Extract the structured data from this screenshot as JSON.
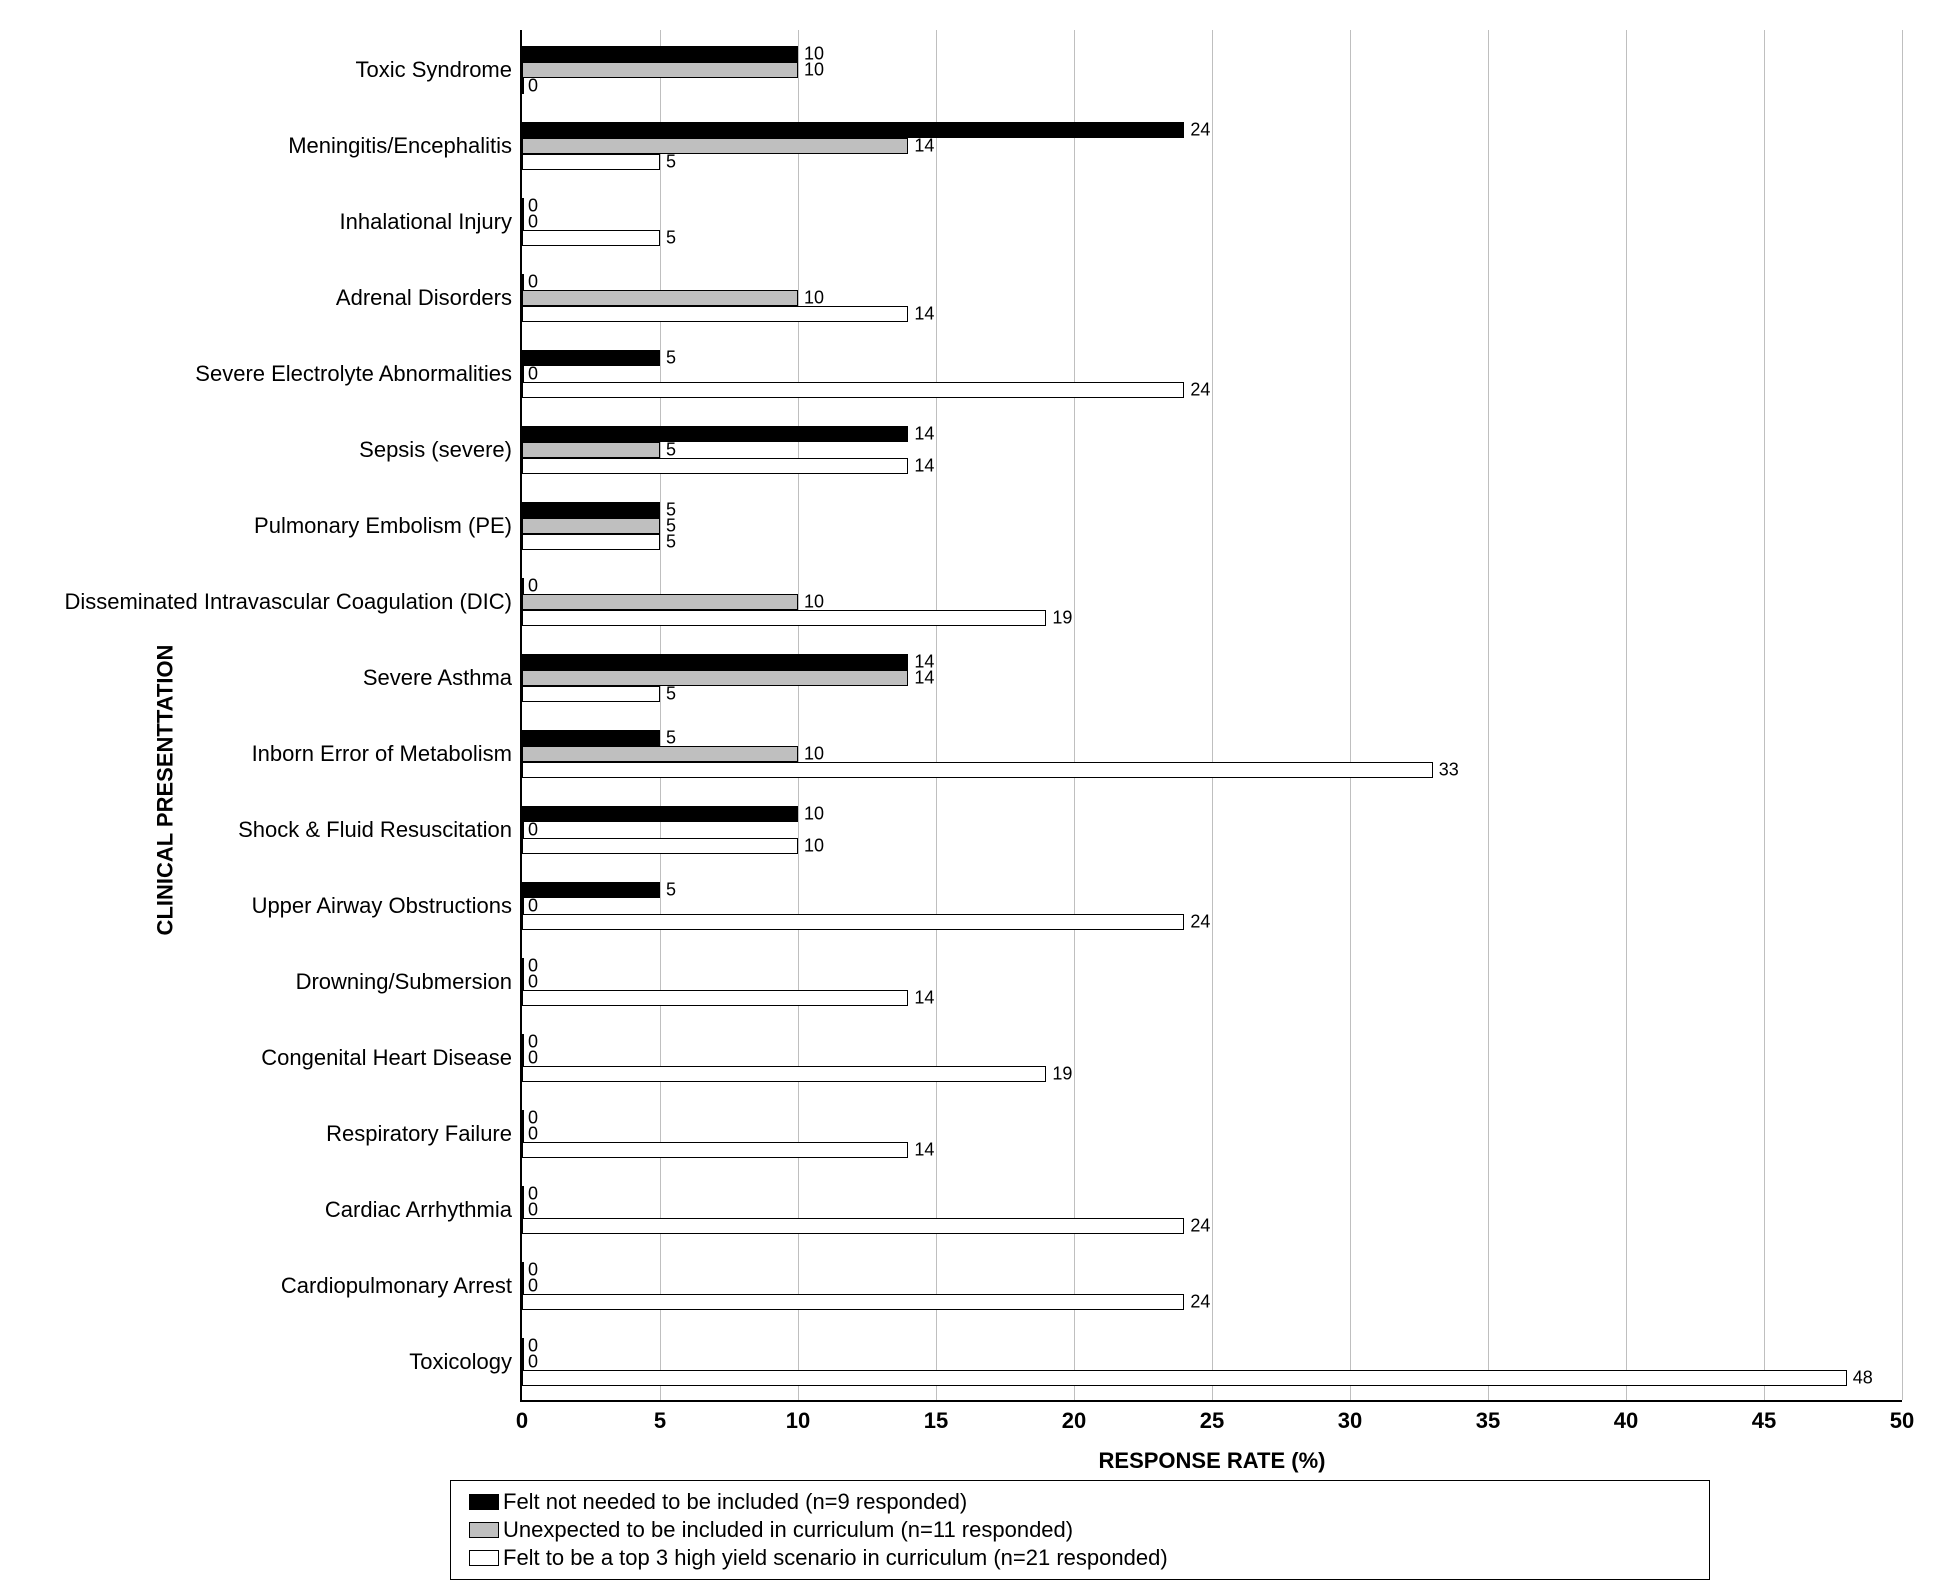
{
  "chart": {
    "type": "bar-horizontal-grouped",
    "xAxis": {
      "title": "RESPONSE RATE (%)",
      "min": 0,
      "max": 50,
      "tickStep": 5,
      "ticks": [
        0,
        5,
        10,
        15,
        20,
        25,
        30,
        35,
        40,
        45,
        50
      ],
      "gridColor": "#bfbfbf",
      "tickFontSize": 22
    },
    "yAxis": {
      "title": "CLINICAL PRESENTTATION",
      "titleFontSize": 22,
      "labelFontSize": 22
    },
    "series": [
      {
        "key": "notNeeded",
        "label": "Felt not needed to be included (n=9 responded)",
        "fill": "#000000",
        "border": "#000000"
      },
      {
        "key": "unexpected",
        "label": "Unexpected to be included in curriculum (n=11 responded)",
        "fill": "#bfbfbf",
        "border": "#000000"
      },
      {
        "key": "top3",
        "label": "Felt to be a top 3 high yield scenario in curriculum (n=21 responded)",
        "fill": "#ffffff",
        "border": "#000000"
      }
    ],
    "categories": [
      {
        "label": "Toxic Syndrome",
        "notNeeded": 10,
        "unexpected": 10,
        "top3": 0,
        "labels": {
          "notNeeded": "10",
          "unexpected": "10",
          "top3": "0"
        }
      },
      {
        "label": "Meningitis/Encephalitis",
        "notNeeded": 24,
        "unexpected": 14,
        "top3": 5,
        "labels": {
          "notNeeded": "24",
          "unexpected": "14",
          "top3": "5"
        }
      },
      {
        "label": "Inhalational Injury",
        "notNeeded": 0,
        "unexpected": 0,
        "top3": 5,
        "labels": {
          "notNeeded": "0",
          "unexpected": "0",
          "top3": "5"
        }
      },
      {
        "label": "Adrenal Disorders",
        "notNeeded": 0,
        "unexpected": 10,
        "top3": 14,
        "labels": {
          "notNeeded": "0",
          "unexpected": "10",
          "top3": "14"
        }
      },
      {
        "label": "Severe Electrolyte Abnormalities",
        "notNeeded": 5,
        "unexpected": 0,
        "top3": 24,
        "labels": {
          "notNeeded": "5",
          "unexpected": "0",
          "top3": "24"
        }
      },
      {
        "label": "Sepsis (severe)",
        "notNeeded": 14,
        "unexpected": 5,
        "top3": 14,
        "labels": {
          "notNeeded": "14",
          "unexpected": "5",
          "top3": "14"
        }
      },
      {
        "label": "Pulmonary Embolism (PE)",
        "notNeeded": 5,
        "unexpected": 5,
        "top3": 5,
        "labels": {
          "notNeeded": "5",
          "unexpected": "5",
          "top3": "5"
        }
      },
      {
        "label": "Disseminated Intravascular Coagulation (DIC)",
        "notNeeded": 0,
        "unexpected": 10,
        "top3": 19,
        "labels": {
          "notNeeded": "0",
          "unexpected": "10",
          "top3": "19"
        }
      },
      {
        "label": "Severe Asthma",
        "notNeeded": 14,
        "unexpected": 14,
        "top3": 5,
        "labels": {
          "notNeeded": "14",
          "unexpected": "14",
          "top3": "5"
        }
      },
      {
        "label": "Inborn Error of Metabolism",
        "notNeeded": 5,
        "unexpected": 10,
        "top3": 33,
        "labels": {
          "notNeeded": "5",
          "unexpected": "10",
          "top3": "33"
        }
      },
      {
        "label": "Shock & Fluid Resuscitation",
        "notNeeded": 10,
        "unexpected": 0,
        "top3": 10,
        "labels": {
          "notNeeded": "10",
          "unexpected": "0",
          "top3": "10"
        }
      },
      {
        "label": "Upper Airway Obstructions",
        "notNeeded": 5,
        "unexpected": 0,
        "top3": 24,
        "labels": {
          "notNeeded": "5",
          "unexpected": "0",
          "top3": "24"
        }
      },
      {
        "label": "Drowning/Submersion",
        "notNeeded": 0,
        "unexpected": 0,
        "top3": 14,
        "labels": {
          "notNeeded": "0",
          "unexpected": "0",
          "top3": "14"
        }
      },
      {
        "label": "Congenital Heart Disease",
        "notNeeded": 0,
        "unexpected": 0,
        "top3": 19,
        "labels": {
          "notNeeded": "0",
          "unexpected": "0",
          "top3": "19"
        }
      },
      {
        "label": "Respiratory Failure",
        "notNeeded": 0,
        "unexpected": 0,
        "top3": 14,
        "labels": {
          "notNeeded": "0",
          "unexpected": "0",
          "top3": "14"
        }
      },
      {
        "label": "Cardiac Arrhythmia",
        "notNeeded": 0,
        "unexpected": 0,
        "top3": 24,
        "labels": {
          "notNeeded": "0",
          "unexpected": "0",
          "top3": "24"
        }
      },
      {
        "label": "Cardiopulmonary Arrest",
        "notNeeded": 0,
        "unexpected": 0,
        "top3": 24,
        "labels": {
          "notNeeded": "0",
          "unexpected": "0",
          "top3": "24"
        }
      },
      {
        "label": "Toxicology",
        "notNeeded": 0,
        "unexpected": 0,
        "top3": 48,
        "labels": {
          "notNeeded": "0",
          "unexpected": "0",
          "top3": "48"
        }
      }
    ],
    "layout": {
      "plotWidthPx": 1380,
      "plotHeightPx": 1370,
      "groupSpacingPx": 76,
      "barHeightPx": 16,
      "firstGroupTopPx": 16
    },
    "colors": {
      "background": "#ffffff",
      "axis": "#000000",
      "grid": "#bfbfbf",
      "text": "#000000"
    }
  }
}
